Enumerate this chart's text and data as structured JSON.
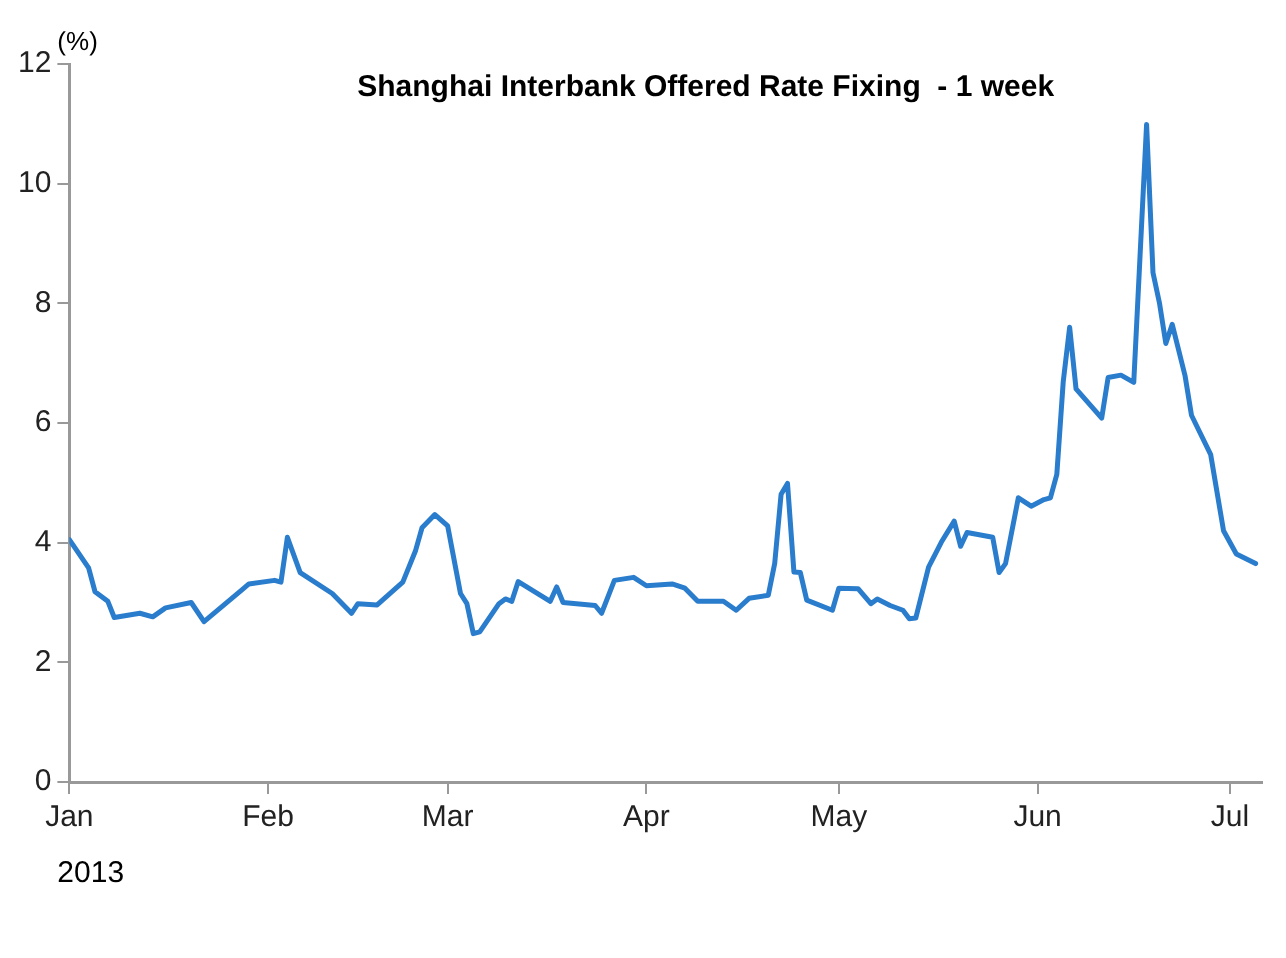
{
  "chart_data": {
    "type": "line",
    "title": "Shanghai Interbank Offered Rate Fixing  - 1 week",
    "ylabel": "(%)",
    "xlabel": "2013",
    "x": [
      "2013-01-01",
      "2013-01-04",
      "2013-01-05",
      "2013-01-07",
      "2013-01-08",
      "2013-01-12",
      "2013-01-14",
      "2013-01-16",
      "2013-01-20",
      "2013-01-22",
      "2013-01-28",
      "2013-01-29",
      "2013-02-02",
      "2013-02-03",
      "2013-02-04",
      "2013-02-06",
      "2013-02-11",
      "2013-02-14",
      "2013-02-15",
      "2013-02-18",
      "2013-02-22",
      "2013-02-24",
      "2013-02-25",
      "2013-02-27",
      "2013-03-01",
      "2013-03-03",
      "2013-03-04",
      "2013-03-05",
      "2013-03-06",
      "2013-03-09",
      "2013-03-10",
      "2013-03-11",
      "2013-03-12",
      "2013-03-17",
      "2013-03-18",
      "2013-03-19",
      "2013-03-24",
      "2013-03-25",
      "2013-03-27",
      "2013-03-30",
      "2013-04-01",
      "2013-04-05",
      "2013-04-07",
      "2013-04-09",
      "2013-04-13",
      "2013-04-15",
      "2013-04-17",
      "2013-04-20",
      "2013-04-21",
      "2013-04-22",
      "2013-04-23",
      "2013-04-24",
      "2013-04-25",
      "2013-04-26",
      "2013-04-30",
      "2013-05-01",
      "2013-05-04",
      "2013-05-06",
      "2013-05-07",
      "2013-05-09",
      "2013-05-11",
      "2013-05-12",
      "2013-05-13",
      "2013-05-15",
      "2013-05-17",
      "2013-05-19",
      "2013-05-20",
      "2013-05-21",
      "2013-05-25",
      "2013-05-26",
      "2013-05-27",
      "2013-05-29",
      "2013-05-31",
      "2013-06-02",
      "2013-06-03",
      "2013-06-04",
      "2013-06-05",
      "2013-06-06",
      "2013-06-07",
      "2013-06-11",
      "2013-06-12",
      "2013-06-14",
      "2013-06-16",
      "2013-06-18",
      "2013-06-19",
      "2013-06-20",
      "2013-06-21",
      "2013-06-22",
      "2013-06-24",
      "2013-06-25",
      "2013-06-28",
      "2013-06-30",
      "2013-07-02",
      "2013-07-05"
    ],
    "series": [
      {
        "color": "#2a7ccc",
        "values": [
          4.05,
          3.58,
          3.18,
          3.02,
          2.75,
          2.82,
          2.76,
          2.91,
          3.0,
          2.68,
          3.22,
          3.31,
          3.37,
          3.34,
          4.09,
          3.5,
          3.15,
          2.82,
          2.98,
          2.96,
          3.34,
          3.87,
          4.25,
          4.47,
          4.28,
          3.15,
          2.98,
          2.48,
          2.51,
          2.98,
          3.06,
          3.02,
          3.35,
          3.02,
          3.26,
          3.0,
          2.95,
          2.82,
          3.37,
          3.42,
          3.28,
          3.31,
          3.24,
          3.02,
          3.02,
          2.87,
          3.07,
          3.12,
          3.65,
          4.81,
          4.99,
          3.51,
          3.5,
          3.04,
          2.87,
          3.24,
          3.23,
          2.98,
          3.06,
          2.95,
          2.87,
          2.73,
          2.74,
          3.59,
          4.01,
          4.36,
          3.94,
          4.17,
          4.09,
          3.5,
          3.65,
          4.75,
          4.61,
          4.72,
          4.75,
          5.14,
          6.69,
          7.6,
          6.57,
          6.08,
          6.76,
          6.8,
          6.68,
          10.99,
          8.51,
          8.01,
          7.33,
          7.65,
          6.79,
          6.13,
          5.47,
          4.2,
          3.81,
          3.65
        ]
      }
    ],
    "xlim": [
      "2013-01-01",
      "2013-07-06"
    ],
    "xticks": [
      {
        "value": "2013-01-01",
        "label": "Jan"
      },
      {
        "value": "2013-02-01",
        "label": "Feb"
      },
      {
        "value": "2013-03-01",
        "label": "Mar"
      },
      {
        "value": "2013-04-01",
        "label": "Apr"
      },
      {
        "value": "2013-05-01",
        "label": "May"
      },
      {
        "value": "2013-06-01",
        "label": "Jun"
      },
      {
        "value": "2013-07-01",
        "label": "Jul"
      }
    ],
    "ylim": [
      0,
      12
    ],
    "yticks": [
      0,
      2,
      4,
      6,
      8,
      10,
      12
    ],
    "grid": false,
    "legend": false,
    "marker": "none",
    "line_style": "solid"
  }
}
